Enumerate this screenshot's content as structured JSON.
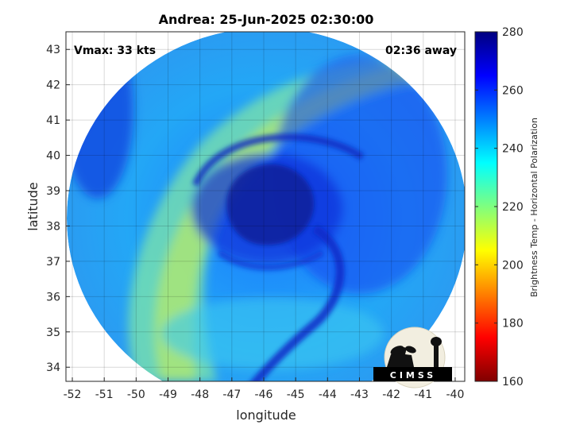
{
  "chart_data": {
    "type": "heatmap",
    "title": "Andrea: 25-Jun-2025 02:30:00",
    "xlabel": "longitude",
    "ylabel": "latitude",
    "xlim": [
      -52.2,
      -39.7
    ],
    "ylim": [
      33.6,
      43.5
    ],
    "xticks": [
      -52,
      -51,
      -50,
      -49,
      -48,
      -47,
      -46,
      -45,
      -44,
      -43,
      -42,
      -41,
      -40
    ],
    "yticks": [
      34,
      35,
      36,
      37,
      38,
      39,
      40,
      41,
      42,
      43
    ],
    "grid": true,
    "storm_center": {
      "lon": -45.9,
      "lat": 38.6
    },
    "annotations": {
      "vmax": "Vmax: 33 kts",
      "away": "02:36 away"
    },
    "colorbar": {
      "label": "Brightness Temp - Horizontal Polarization",
      "min": 160,
      "max": 280,
      "ticks": [
        160,
        180,
        200,
        220,
        240,
        260,
        280
      ],
      "colormap": "jet"
    },
    "logo": "CIMSS"
  }
}
